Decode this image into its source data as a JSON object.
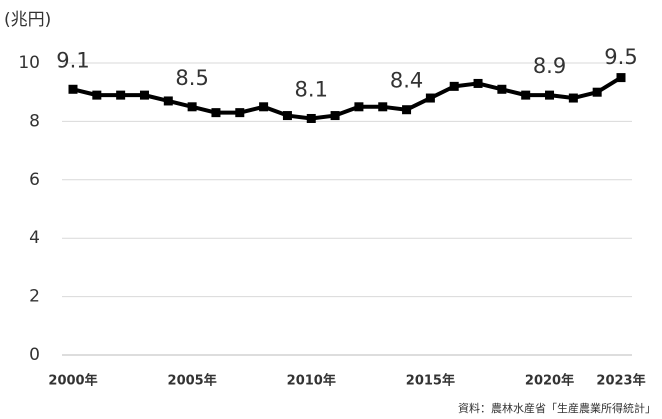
{
  "chart_data": {
    "type": "line",
    "y_axis_label": "(兆円)",
    "source": "資料：農林水産省「生産農業所得統計」",
    "categories": [
      "2000年",
      null,
      null,
      null,
      null,
      "2005年",
      null,
      null,
      null,
      null,
      "2010年",
      null,
      null,
      null,
      null,
      "2015年",
      null,
      null,
      null,
      null,
      "2020年",
      null,
      null,
      "2023年"
    ],
    "series": [
      {
        "color": "#000000",
        "values": [
          9.1,
          8.9,
          8.9,
          8.9,
          8.7,
          8.5,
          8.3,
          8.3,
          8.5,
          8.2,
          8.1,
          8.2,
          8.5,
          8.5,
          8.4,
          8.8,
          9.2,
          9.3,
          9.1,
          8.9,
          8.9,
          8.8,
          9.0,
          9.5
        ],
        "value_labels": [
          "9.1",
          null,
          null,
          null,
          null,
          "8.5",
          null,
          null,
          null,
          null,
          "8.1",
          null,
          null,
          null,
          "8.4",
          null,
          null,
          null,
          null,
          null,
          "8.9",
          null,
          null,
          "9.5"
        ]
      }
    ],
    "ylim": [
      0,
      10
    ],
    "yticks": [
      0,
      2,
      4,
      6,
      8,
      10
    ],
    "grid": true
  }
}
